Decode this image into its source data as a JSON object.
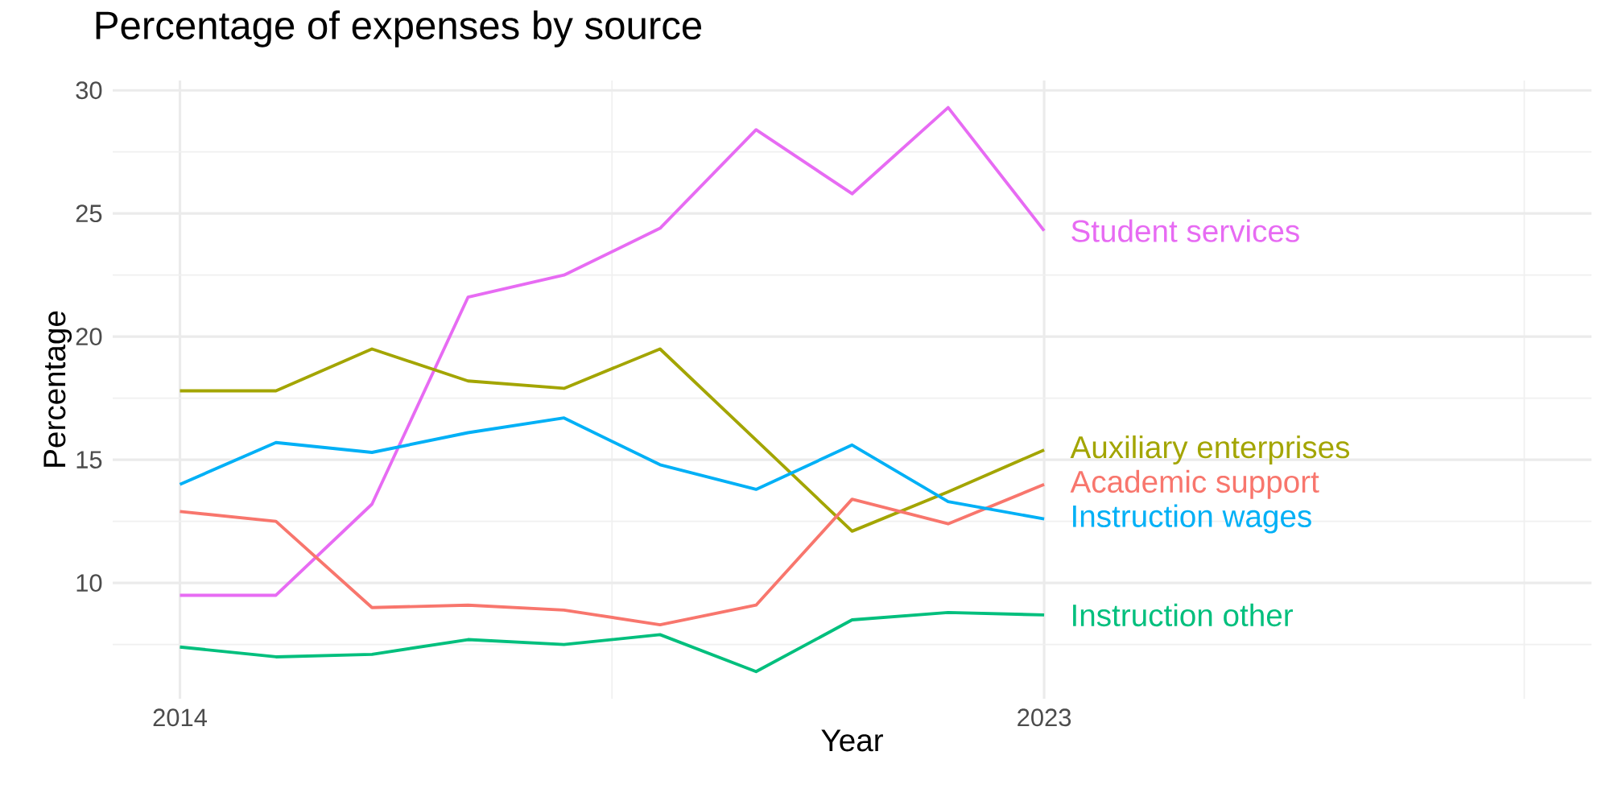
{
  "chart_data": {
    "type": "line",
    "title": "Percentage of expenses by source",
    "xlabel": "Year",
    "ylabel": "Percentage",
    "x": [
      2014,
      2015,
      2016,
      2017,
      2018,
      2019,
      2020,
      2021,
      2022,
      2023
    ],
    "series": [
      {
        "name": "Student services",
        "color": "#e76bf3",
        "values": [
          9.5,
          9.5,
          13.2,
          21.6,
          22.5,
          24.4,
          28.4,
          25.8,
          29.3,
          24.3
        ]
      },
      {
        "name": "Auxiliary enterprises",
        "color": "#a3a500",
        "values": [
          17.8,
          17.8,
          19.5,
          18.2,
          17.9,
          19.5,
          15.8,
          12.1,
          13.7,
          15.4
        ]
      },
      {
        "name": "Academic support",
        "color": "#f8766d",
        "values": [
          12.9,
          12.5,
          9.0,
          9.1,
          8.9,
          8.3,
          9.1,
          13.4,
          12.4,
          14.0
        ]
      },
      {
        "name": "Instruction wages",
        "color": "#00b0f6",
        "values": [
          14.0,
          15.7,
          15.3,
          16.1,
          16.7,
          14.8,
          13.8,
          15.6,
          13.3,
          12.6
        ]
      },
      {
        "name": "Instruction other",
        "color": "#00bf7d",
        "values": [
          7.4,
          7.0,
          7.1,
          7.7,
          7.5,
          7.9,
          6.4,
          8.5,
          8.8,
          8.7
        ]
      }
    ],
    "xlim": [
      2013.3,
      2028.7
    ],
    "xticks": [
      2014,
      {
        "value": 2018.5,
        "label": null
      },
      2023,
      {
        "value": 2028,
        "label": null
      }
    ],
    "ylim": [
      5.3,
      30.4
    ],
    "yticks": [
      {
        "value": 7.5,
        "label": null
      },
      10,
      {
        "value": 12.5,
        "label": null
      },
      15,
      {
        "value": 17.5,
        "label": null
      },
      20,
      {
        "value": 22.5,
        "label": null
      },
      25,
      {
        "value": 27.5,
        "label": null
      },
      30
    ],
    "grid": true,
    "legend": false,
    "marker": "none",
    "line_style": "solid"
  }
}
